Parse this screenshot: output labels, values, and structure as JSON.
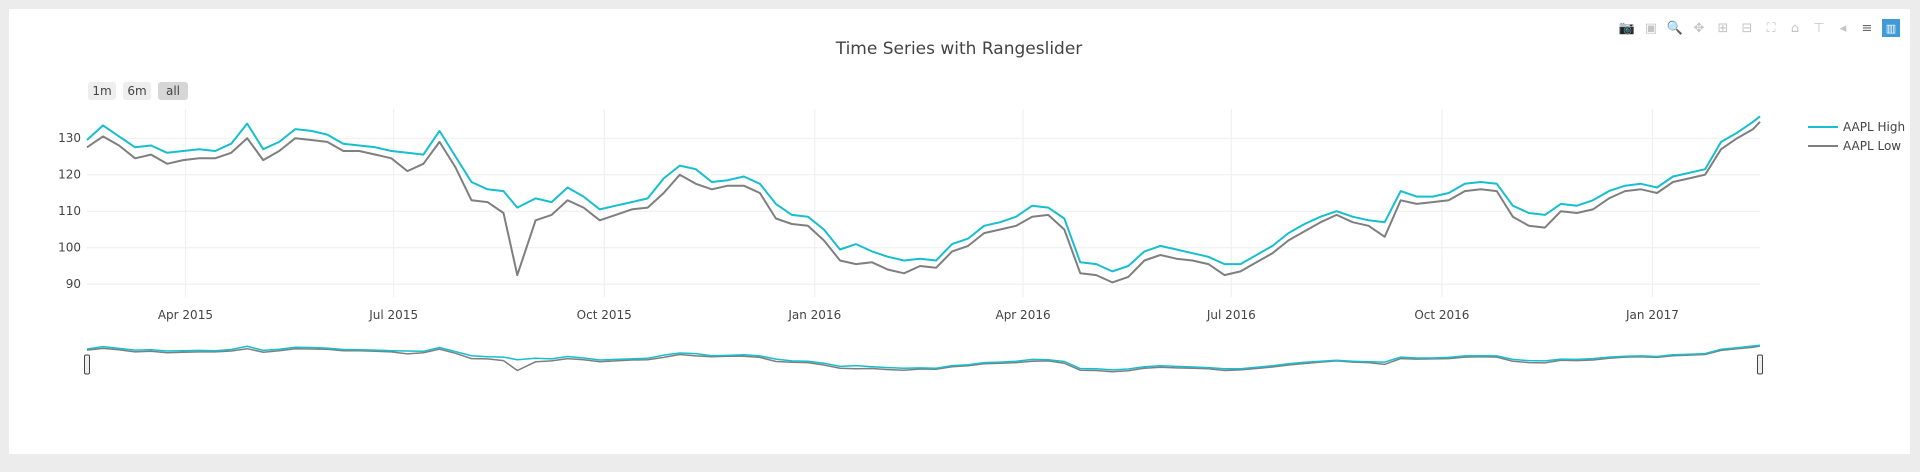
{
  "modebar": {
    "buttons": [
      {
        "name": "camera-icon",
        "glyph": "📷",
        "active": false
      },
      {
        "name": "save-icon",
        "glyph": "▣",
        "active": false
      },
      {
        "name": "zoom-icon",
        "glyph": "🔍",
        "active": true
      },
      {
        "name": "pan-icon",
        "glyph": "✥",
        "active": false
      },
      {
        "name": "zoom-in-icon",
        "glyph": "⊞",
        "active": false
      },
      {
        "name": "zoom-out-icon",
        "glyph": "⊟",
        "active": false
      },
      {
        "name": "autoscale-icon",
        "glyph": "⛶",
        "active": false
      },
      {
        "name": "reset-axes-icon",
        "glyph": "⌂",
        "active": false
      },
      {
        "name": "spike-lines-icon",
        "glyph": "⊤",
        "active": false
      },
      {
        "name": "hover-closest-icon",
        "glyph": "◂",
        "active": false
      },
      {
        "name": "hover-compare-icon",
        "glyph": "≡",
        "active": true
      },
      {
        "name": "plotly-logo-icon",
        "glyph": "▥",
        "active": false
      }
    ]
  },
  "range_buttons": [
    {
      "label": "1m",
      "active": false
    },
    {
      "label": "6m",
      "active": false
    },
    {
      "label": "all",
      "active": true
    }
  ],
  "colors": {
    "high": "#17becf",
    "low": "#7f7f7f",
    "grid": "#eeeeee"
  },
  "chart_data": {
    "type": "line",
    "title": "Time Series with Rangeslider",
    "x_range": [
      "2015-02-17",
      "2017-02-17"
    ],
    "y_range": [
      86.5,
      138
    ],
    "y_ticks": [
      90,
      100,
      110,
      120,
      130
    ],
    "x_ticks": [
      {
        "date": "2015-04-01",
        "label": "Apr 2015"
      },
      {
        "date": "2015-07-01",
        "label": "Jul 2015"
      },
      {
        "date": "2015-10-01",
        "label": "Oct 2015"
      },
      {
        "date": "2016-01-01",
        "label": "Jan 2016"
      },
      {
        "date": "2016-04-01",
        "label": "Apr 2016"
      },
      {
        "date": "2016-07-01",
        "label": "Jul 2016"
      },
      {
        "date": "2016-10-01",
        "label": "Oct 2016"
      },
      {
        "date": "2017-01-01",
        "label": "Jan 2017"
      }
    ],
    "legend_position": "top-right",
    "rangeslider": true,
    "series": [
      {
        "name": "AAPL High",
        "color": "#17becf",
        "points": [
          [
            "2015-02-17",
            129.5
          ],
          [
            "2015-02-24",
            133.5
          ],
          [
            "2015-03-03",
            130.5
          ],
          [
            "2015-03-10",
            127.5
          ],
          [
            "2015-03-17",
            128.0
          ],
          [
            "2015-03-24",
            126.0
          ],
          [
            "2015-03-31",
            126.5
          ],
          [
            "2015-04-07",
            127.0
          ],
          [
            "2015-04-14",
            126.5
          ],
          [
            "2015-04-21",
            128.5
          ],
          [
            "2015-04-28",
            134.0
          ],
          [
            "2015-05-05",
            127.0
          ],
          [
            "2015-05-12",
            129.0
          ],
          [
            "2015-05-19",
            132.5
          ],
          [
            "2015-05-26",
            132.0
          ],
          [
            "2015-06-02",
            131.0
          ],
          [
            "2015-06-09",
            128.5
          ],
          [
            "2015-06-16",
            128.0
          ],
          [
            "2015-06-23",
            127.5
          ],
          [
            "2015-06-30",
            126.5
          ],
          [
            "2015-07-07",
            126.0
          ],
          [
            "2015-07-14",
            125.5
          ],
          [
            "2015-07-21",
            132.0
          ],
          [
            "2015-07-28",
            125.0
          ],
          [
            "2015-08-04",
            118.0
          ],
          [
            "2015-08-11",
            116.0
          ],
          [
            "2015-08-18",
            115.5
          ],
          [
            "2015-08-24",
            111.0
          ],
          [
            "2015-09-01",
            113.5
          ],
          [
            "2015-09-08",
            112.5
          ],
          [
            "2015-09-15",
            116.5
          ],
          [
            "2015-09-22",
            114.0
          ],
          [
            "2015-09-29",
            110.5
          ],
          [
            "2015-10-06",
            111.5
          ],
          [
            "2015-10-13",
            112.5
          ],
          [
            "2015-10-20",
            113.5
          ],
          [
            "2015-10-27",
            119.0
          ],
          [
            "2015-11-03",
            122.5
          ],
          [
            "2015-11-10",
            121.5
          ],
          [
            "2015-11-17",
            118.0
          ],
          [
            "2015-11-24",
            118.5
          ],
          [
            "2015-12-01",
            119.5
          ],
          [
            "2015-12-08",
            117.5
          ],
          [
            "2015-12-15",
            112.0
          ],
          [
            "2015-12-22",
            109.0
          ],
          [
            "2015-12-29",
            108.5
          ],
          [
            "2016-01-05",
            105.0
          ],
          [
            "2016-01-12",
            99.5
          ],
          [
            "2016-01-19",
            101.0
          ],
          [
            "2016-01-26",
            99.0
          ],
          [
            "2016-02-02",
            97.5
          ],
          [
            "2016-02-09",
            96.5
          ],
          [
            "2016-02-16",
            97.0
          ],
          [
            "2016-02-23",
            96.5
          ],
          [
            "2016-03-01",
            101.0
          ],
          [
            "2016-03-08",
            102.5
          ],
          [
            "2016-03-15",
            106.0
          ],
          [
            "2016-03-22",
            107.0
          ],
          [
            "2016-03-29",
            108.5
          ],
          [
            "2016-04-05",
            111.5
          ],
          [
            "2016-04-12",
            111.0
          ],
          [
            "2016-04-19",
            108.0
          ],
          [
            "2016-04-26",
            96.0
          ],
          [
            "2016-05-03",
            95.5
          ],
          [
            "2016-05-10",
            93.5
          ],
          [
            "2016-05-17",
            95.0
          ],
          [
            "2016-05-24",
            99.0
          ],
          [
            "2016-05-31",
            100.5
          ],
          [
            "2016-06-07",
            99.5
          ],
          [
            "2016-06-14",
            98.5
          ],
          [
            "2016-06-21",
            97.5
          ],
          [
            "2016-06-28",
            95.5
          ],
          [
            "2016-07-05",
            95.5
          ],
          [
            "2016-07-12",
            98.0
          ],
          [
            "2016-07-19",
            100.5
          ],
          [
            "2016-07-26",
            104.0
          ],
          [
            "2016-08-02",
            106.5
          ],
          [
            "2016-08-09",
            108.5
          ],
          [
            "2016-08-16",
            110.0
          ],
          [
            "2016-08-23",
            108.5
          ],
          [
            "2016-08-30",
            107.5
          ],
          [
            "2016-09-06",
            107.0
          ],
          [
            "2016-09-13",
            115.5
          ],
          [
            "2016-09-20",
            114.0
          ],
          [
            "2016-09-27",
            114.0
          ],
          [
            "2016-10-04",
            115.0
          ],
          [
            "2016-10-11",
            117.5
          ],
          [
            "2016-10-18",
            118.0
          ],
          [
            "2016-10-25",
            117.5
          ],
          [
            "2016-11-01",
            111.5
          ],
          [
            "2016-11-08",
            109.5
          ],
          [
            "2016-11-15",
            109.0
          ],
          [
            "2016-11-22",
            112.0
          ],
          [
            "2016-11-29",
            111.5
          ],
          [
            "2016-12-06",
            113.0
          ],
          [
            "2016-12-13",
            115.5
          ],
          [
            "2016-12-20",
            117.0
          ],
          [
            "2016-12-27",
            117.5
          ],
          [
            "2017-01-03",
            116.5
          ],
          [
            "2017-01-10",
            119.5
          ],
          [
            "2017-01-17",
            120.5
          ],
          [
            "2017-01-24",
            121.5
          ],
          [
            "2017-01-31",
            129.0
          ],
          [
            "2017-02-07",
            131.5
          ],
          [
            "2017-02-14",
            134.5
          ],
          [
            "2017-02-17",
            136.0
          ]
        ]
      },
      {
        "name": "AAPL Low",
        "color": "#7f7f7f",
        "points": [
          [
            "2015-02-17",
            127.5
          ],
          [
            "2015-02-24",
            130.5
          ],
          [
            "2015-03-03",
            128.0
          ],
          [
            "2015-03-10",
            124.5
          ],
          [
            "2015-03-17",
            125.5
          ],
          [
            "2015-03-24",
            123.0
          ],
          [
            "2015-03-31",
            124.0
          ],
          [
            "2015-04-07",
            124.5
          ],
          [
            "2015-04-14",
            124.5
          ],
          [
            "2015-04-21",
            126.0
          ],
          [
            "2015-04-28",
            130.0
          ],
          [
            "2015-05-05",
            124.0
          ],
          [
            "2015-05-12",
            126.5
          ],
          [
            "2015-05-19",
            130.0
          ],
          [
            "2015-05-26",
            129.5
          ],
          [
            "2015-06-02",
            129.0
          ],
          [
            "2015-06-09",
            126.5
          ],
          [
            "2015-06-16",
            126.5
          ],
          [
            "2015-06-23",
            125.5
          ],
          [
            "2015-06-30",
            124.5
          ],
          [
            "2015-07-07",
            121.0
          ],
          [
            "2015-07-14",
            123.0
          ],
          [
            "2015-07-21",
            129.0
          ],
          [
            "2015-07-28",
            122.0
          ],
          [
            "2015-08-04",
            113.0
          ],
          [
            "2015-08-11",
            112.5
          ],
          [
            "2015-08-18",
            109.5
          ],
          [
            "2015-08-24",
            92.5
          ],
          [
            "2015-09-01",
            107.5
          ],
          [
            "2015-09-08",
            109.0
          ],
          [
            "2015-09-15",
            113.0
          ],
          [
            "2015-09-22",
            111.0
          ],
          [
            "2015-09-29",
            107.5
          ],
          [
            "2015-10-06",
            109.0
          ],
          [
            "2015-10-13",
            110.5
          ],
          [
            "2015-10-20",
            111.0
          ],
          [
            "2015-10-27",
            115.0
          ],
          [
            "2015-11-03",
            120.0
          ],
          [
            "2015-11-10",
            117.5
          ],
          [
            "2015-11-17",
            116.0
          ],
          [
            "2015-11-24",
            117.0
          ],
          [
            "2015-12-01",
            117.0
          ],
          [
            "2015-12-08",
            115.0
          ],
          [
            "2015-12-15",
            108.0
          ],
          [
            "2015-12-22",
            106.5
          ],
          [
            "2015-12-29",
            106.0
          ],
          [
            "2016-01-05",
            102.0
          ],
          [
            "2016-01-12",
            96.5
          ],
          [
            "2016-01-19",
            95.5
          ],
          [
            "2016-01-26",
            96.0
          ],
          [
            "2016-02-02",
            94.0
          ],
          [
            "2016-02-09",
            93.0
          ],
          [
            "2016-02-16",
            95.0
          ],
          [
            "2016-02-23",
            94.5
          ],
          [
            "2016-03-01",
            99.0
          ],
          [
            "2016-03-08",
            100.5
          ],
          [
            "2016-03-15",
            104.0
          ],
          [
            "2016-03-22",
            105.0
          ],
          [
            "2016-03-29",
            106.0
          ],
          [
            "2016-04-05",
            108.5
          ],
          [
            "2016-04-12",
            109.0
          ],
          [
            "2016-04-19",
            105.0
          ],
          [
            "2016-04-26",
            93.0
          ],
          [
            "2016-05-03",
            92.5
          ],
          [
            "2016-05-10",
            90.5
          ],
          [
            "2016-05-17",
            92.0
          ],
          [
            "2016-05-24",
            96.5
          ],
          [
            "2016-05-31",
            98.0
          ],
          [
            "2016-06-07",
            97.0
          ],
          [
            "2016-06-14",
            96.5
          ],
          [
            "2016-06-21",
            95.5
          ],
          [
            "2016-06-28",
            92.5
          ],
          [
            "2016-07-05",
            93.5
          ],
          [
            "2016-07-12",
            96.0
          ],
          [
            "2016-07-19",
            98.5
          ],
          [
            "2016-07-26",
            102.0
          ],
          [
            "2016-08-02",
            104.5
          ],
          [
            "2016-08-09",
            107.0
          ],
          [
            "2016-08-16",
            109.0
          ],
          [
            "2016-08-23",
            107.0
          ],
          [
            "2016-08-30",
            106.0
          ],
          [
            "2016-09-06",
            103.0
          ],
          [
            "2016-09-13",
            113.0
          ],
          [
            "2016-09-20",
            112.0
          ],
          [
            "2016-09-27",
            112.5
          ],
          [
            "2016-10-04",
            113.0
          ],
          [
            "2016-10-11",
            115.5
          ],
          [
            "2016-10-18",
            116.0
          ],
          [
            "2016-10-25",
            115.5
          ],
          [
            "2016-11-01",
            108.5
          ],
          [
            "2016-11-08",
            106.0
          ],
          [
            "2016-11-15",
            105.5
          ],
          [
            "2016-11-22",
            110.0
          ],
          [
            "2016-11-29",
            109.5
          ],
          [
            "2016-12-06",
            110.5
          ],
          [
            "2016-12-13",
            113.5
          ],
          [
            "2016-12-20",
            115.5
          ],
          [
            "2016-12-27",
            116.0
          ],
          [
            "2017-01-03",
            115.0
          ],
          [
            "2017-01-10",
            118.0
          ],
          [
            "2017-01-17",
            119.0
          ],
          [
            "2017-01-24",
            120.0
          ],
          [
            "2017-01-31",
            127.0
          ],
          [
            "2017-02-07",
            130.0
          ],
          [
            "2017-02-14",
            132.5
          ],
          [
            "2017-02-17",
            134.5
          ]
        ]
      }
    ]
  }
}
